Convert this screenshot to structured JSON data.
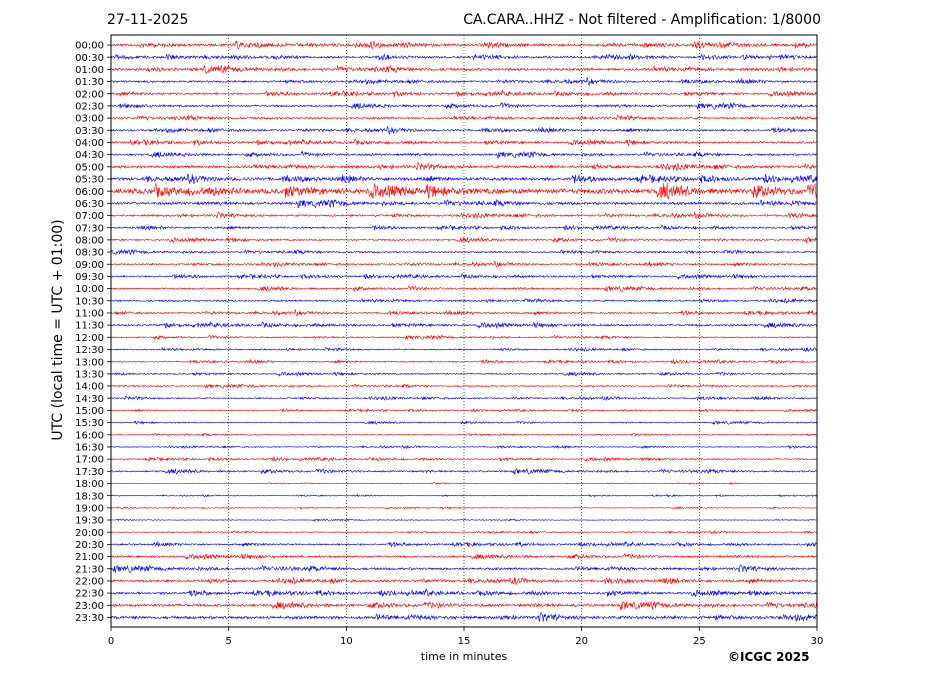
{
  "header": {
    "date": "27-11-2025",
    "station_title": "CA.CARA..HHZ - Not filtered - Amplification: 1/8000"
  },
  "footer": {
    "copyright": "©ICGC 2025"
  },
  "colors": {
    "trace_a": "#ff0000",
    "trace_b": "#0000ff",
    "frame": "#000000",
    "grid": "#000000"
  },
  "chart_data": {
    "type": "line",
    "title": "CA.CARA..HHZ - Not filtered - Amplification: 1/8000",
    "xlabel": "time in minutes",
    "ylabel": "UTC (local time = UTC + 01:00)",
    "xlim": [
      0,
      30
    ],
    "x_ticks": [
      0,
      5,
      10,
      15,
      20,
      25,
      30
    ],
    "grid": "vertical dotted",
    "rows": [
      "00:00",
      "00:30",
      "01:00",
      "01:30",
      "02:00",
      "02:30",
      "03:00",
      "03:30",
      "04:00",
      "04:30",
      "05:00",
      "05:30",
      "06:00",
      "06:30",
      "07:00",
      "07:30",
      "08:00",
      "08:30",
      "09:00",
      "09:30",
      "10:00",
      "10:30",
      "11:00",
      "11:30",
      "12:00",
      "12:30",
      "13:00",
      "13:30",
      "14:00",
      "14:30",
      "15:00",
      "15:30",
      "16:00",
      "16:30",
      "17:00",
      "17:30",
      "18:00",
      "18:30",
      "19:00",
      "19:30",
      "20:00",
      "20:30",
      "21:00",
      "21:30",
      "22:00",
      "22:30",
      "23:00",
      "23:30"
    ],
    "row_colors": [
      "#ff0000",
      "#0000ff"
    ],
    "row_amplitude": [
      0.8,
      0.6,
      0.8,
      0.6,
      0.6,
      0.6,
      0.6,
      0.6,
      0.6,
      0.6,
      0.8,
      0.9,
      1.6,
      0.8,
      0.6,
      0.5,
      0.5,
      0.5,
      0.5,
      0.5,
      0.5,
      0.5,
      0.5,
      0.6,
      0.4,
      0.4,
      0.4,
      0.4,
      0.4,
      0.4,
      0.3,
      0.3,
      0.3,
      0.3,
      0.4,
      0.5,
      0.2,
      0.2,
      0.2,
      0.2,
      0.3,
      0.5,
      0.6,
      0.7,
      0.7,
      0.7,
      0.8,
      0.9
    ]
  }
}
